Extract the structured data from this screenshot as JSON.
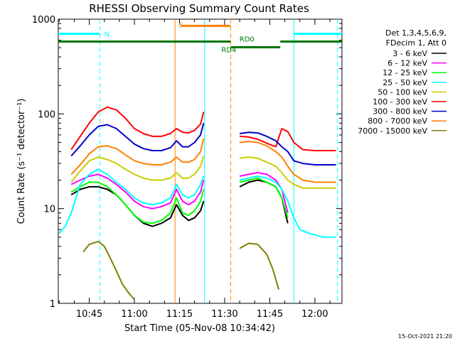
{
  "chart_data": {
    "type": "line",
    "title": "RHESSI Observing Summary Count Rates",
    "xlabel": "Start Time (05-Nov-08 10:34:42)",
    "ylabel": "Count Rate (s⁻¹ detector⁻¹)",
    "yscale": "log",
    "xlim": [
      "10:34:42",
      "12:09:00"
    ],
    "ylim": [
      1,
      1000
    ],
    "x_ticks": [
      "10:45",
      "11:00",
      "11:15",
      "11:30",
      "11:45",
      "12:00"
    ],
    "y_ticks": [
      "1",
      "10",
      "100",
      "1000"
    ],
    "legend_header": [
      "Det 1,3,4,5,6,9,",
      "FDecim 1, Att 0"
    ],
    "legend_position": "right",
    "footer_date": "15-Oct-2021 21:20",
    "series": [
      {
        "name": "3 - 6 keV",
        "color": "#000000",
        "points": [
          [
            "10:39",
            14
          ],
          [
            "10:42",
            16
          ],
          [
            "10:45",
            17
          ],
          [
            "10:48",
            17
          ],
          [
            "10:51",
            16
          ],
          [
            "10:54",
            14
          ],
          [
            "10:57",
            11
          ],
          [
            "11:00",
            8.5
          ],
          [
            "11:03",
            7
          ],
          [
            "11:06",
            6.5
          ],
          [
            "11:09",
            7
          ],
          [
            "11:12",
            8
          ],
          [
            "11:14",
            11
          ],
          [
            "11:16",
            8.5
          ],
          [
            "11:18",
            7.5
          ],
          [
            "11:20",
            8
          ],
          [
            "11:22",
            9.5
          ],
          [
            "11:23",
            12
          ],
          [
            "11:35",
            17
          ],
          [
            "11:38",
            19
          ],
          [
            "11:41",
            20
          ],
          [
            "11:44",
            19
          ],
          [
            "11:47",
            17
          ],
          [
            "11:49",
            13
          ],
          [
            "11:51",
            7
          ]
        ]
      },
      {
        "name": "6 - 12 keV",
        "color": "#ff00ff",
        "points": [
          [
            "10:39",
            18
          ],
          [
            "10:42",
            20
          ],
          [
            "10:45",
            22
          ],
          [
            "10:48",
            23
          ],
          [
            "10:51",
            21
          ],
          [
            "10:54",
            18
          ],
          [
            "10:57",
            15
          ],
          [
            "11:00",
            12
          ],
          [
            "11:03",
            10.5
          ],
          [
            "11:06",
            10
          ],
          [
            "11:09",
            10.5
          ],
          [
            "11:12",
            11.5
          ],
          [
            "11:14",
            16
          ],
          [
            "11:16",
            12
          ],
          [
            "11:18",
            11
          ],
          [
            "11:20",
            12
          ],
          [
            "11:22",
            15
          ],
          [
            "11:23",
            20
          ],
          [
            "11:35",
            22
          ],
          [
            "11:38",
            23
          ],
          [
            "11:41",
            24
          ],
          [
            "11:44",
            23
          ],
          [
            "11:47",
            20
          ],
          [
            "11:49",
            16
          ],
          [
            "11:51",
            9
          ]
        ]
      },
      {
        "name": "12 - 25 keV",
        "color": "#00ff00",
        "points": [
          [
            "10:39",
            15
          ],
          [
            "10:42",
            17
          ],
          [
            "10:45",
            19
          ],
          [
            "10:48",
            19
          ],
          [
            "10:51",
            17
          ],
          [
            "10:54",
            14
          ],
          [
            "10:57",
            11
          ],
          [
            "11:00",
            8.5
          ],
          [
            "11:03",
            7.2
          ],
          [
            "11:06",
            7
          ],
          [
            "11:09",
            7.5
          ],
          [
            "11:12",
            9
          ],
          [
            "11:14",
            13
          ],
          [
            "11:16",
            9
          ],
          [
            "11:18",
            8.5
          ],
          [
            "11:20",
            9.5
          ],
          [
            "11:22",
            12
          ],
          [
            "11:23",
            16
          ],
          [
            "11:35",
            19
          ],
          [
            "11:38",
            20
          ],
          [
            "11:41",
            21
          ],
          [
            "11:44",
            19
          ],
          [
            "11:47",
            17
          ],
          [
            "11:49",
            13
          ],
          [
            "11:51",
            8
          ]
        ]
      },
      {
        "name": "25 - 50 keV",
        "color": "#00ffff",
        "points": [
          [
            "10:35",
            5.5
          ],
          [
            "10:37",
            6.5
          ],
          [
            "10:39",
            9
          ],
          [
            "10:42",
            18
          ],
          [
            "10:45",
            23
          ],
          [
            "10:48",
            26
          ],
          [
            "10:51",
            23
          ],
          [
            "10:54",
            19
          ],
          [
            "10:57",
            16
          ],
          [
            "11:00",
            13
          ],
          [
            "11:03",
            11.5
          ],
          [
            "11:06",
            11
          ],
          [
            "11:09",
            11.5
          ],
          [
            "11:12",
            13
          ],
          [
            "11:14",
            18
          ],
          [
            "11:16",
            14
          ],
          [
            "11:18",
            13
          ],
          [
            "11:20",
            14
          ],
          [
            "11:22",
            18
          ],
          [
            "11:23",
            22
          ],
          [
            "11:35",
            20
          ],
          [
            "11:38",
            21
          ],
          [
            "11:41",
            22
          ],
          [
            "11:44",
            21
          ],
          [
            "11:47",
            19
          ],
          [
            "11:49",
            16
          ],
          [
            "11:51",
            12
          ],
          [
            "11:53",
            8
          ],
          [
            "11:55",
            6
          ],
          [
            "11:58",
            5.5
          ],
          [
            "12:03",
            5
          ],
          [
            "12:07",
            5
          ]
        ]
      },
      {
        "name": "50 - 100 keV",
        "color": "#cccc00",
        "points": [
          [
            "10:39",
            19
          ],
          [
            "10:42",
            25
          ],
          [
            "10:45",
            32
          ],
          [
            "10:48",
            35
          ],
          [
            "10:51",
            33
          ],
          [
            "10:54",
            30
          ],
          [
            "10:57",
            26
          ],
          [
            "11:00",
            23
          ],
          [
            "11:03",
            21
          ],
          [
            "11:06",
            20
          ],
          [
            "11:09",
            20
          ],
          [
            "11:12",
            21
          ],
          [
            "11:14",
            24
          ],
          [
            "11:16",
            21
          ],
          [
            "11:18",
            21
          ],
          [
            "11:20",
            23
          ],
          [
            "11:22",
            28
          ],
          [
            "11:23",
            36
          ],
          [
            "11:35",
            34
          ],
          [
            "11:38",
            35
          ],
          [
            "11:41",
            34
          ],
          [
            "11:44",
            31
          ],
          [
            "11:47",
            28
          ],
          [
            "11:49",
            24
          ],
          [
            "11:51",
            20
          ],
          [
            "11:53",
            18
          ],
          [
            "11:56",
            16.5
          ],
          [
            "12:00",
            16.5
          ],
          [
            "12:03",
            16.5
          ],
          [
            "12:07",
            16.5
          ]
        ]
      },
      {
        "name": "100 - 300 keV",
        "color": "#ff0000",
        "points": [
          [
            "10:39",
            42
          ],
          [
            "10:42",
            58
          ],
          [
            "10:45",
            80
          ],
          [
            "10:48",
            105
          ],
          [
            "10:51",
            118
          ],
          [
            "10:54",
            110
          ],
          [
            "10:57",
            90
          ],
          [
            "11:00",
            70
          ],
          [
            "11:03",
            62
          ],
          [
            "11:06",
            58
          ],
          [
            "11:09",
            58
          ],
          [
            "11:12",
            62
          ],
          [
            "11:14",
            70
          ],
          [
            "11:16",
            64
          ],
          [
            "11:18",
            63
          ],
          [
            "11:20",
            67
          ],
          [
            "11:22",
            78
          ],
          [
            "11:23",
            105
          ],
          [
            "11:35",
            58
          ],
          [
            "11:38",
            57
          ],
          [
            "11:41",
            54
          ],
          [
            "11:44",
            49
          ],
          [
            "11:47",
            45
          ],
          [
            "11:49",
            70
          ],
          [
            "11:51",
            65
          ],
          [
            "11:53",
            50
          ],
          [
            "11:56",
            42
          ],
          [
            "12:00",
            41
          ],
          [
            "12:03",
            41
          ],
          [
            "12:07",
            41
          ]
        ]
      },
      {
        "name": "300 - 800 keV",
        "color": "#0000cc",
        "points": [
          [
            "10:39",
            36
          ],
          [
            "10:42",
            46
          ],
          [
            "10:45",
            60
          ],
          [
            "10:48",
            74
          ],
          [
            "10:51",
            77
          ],
          [
            "10:54",
            70
          ],
          [
            "10:57",
            58
          ],
          [
            "11:00",
            48
          ],
          [
            "11:03",
            43
          ],
          [
            "11:06",
            41
          ],
          [
            "11:09",
            41
          ],
          [
            "11:12",
            44
          ],
          [
            "11:14",
            52
          ],
          [
            "11:16",
            45
          ],
          [
            "11:18",
            45
          ],
          [
            "11:20",
            50
          ],
          [
            "11:22",
            60
          ],
          [
            "11:23",
            80
          ],
          [
            "11:35",
            62
          ],
          [
            "11:38",
            64
          ],
          [
            "11:41",
            63
          ],
          [
            "11:44",
            58
          ],
          [
            "11:47",
            52
          ],
          [
            "11:49",
            45
          ],
          [
            "11:51",
            40
          ],
          [
            "11:53",
            32
          ],
          [
            "11:56",
            30
          ],
          [
            "12:00",
            29
          ],
          [
            "12:03",
            29
          ],
          [
            "12:07",
            29
          ]
        ]
      },
      {
        "name": "800 - 7000 keV",
        "color": "#ff8000",
        "points": [
          [
            "10:39",
            23
          ],
          [
            "10:42",
            29
          ],
          [
            "10:45",
            38
          ],
          [
            "10:48",
            45
          ],
          [
            "10:51",
            46
          ],
          [
            "10:54",
            43
          ],
          [
            "10:57",
            37
          ],
          [
            "11:00",
            32
          ],
          [
            "11:03",
            30
          ],
          [
            "11:06",
            29
          ],
          [
            "11:09",
            29
          ],
          [
            "11:12",
            31
          ],
          [
            "11:14",
            35
          ],
          [
            "11:16",
            31
          ],
          [
            "11:18",
            31
          ],
          [
            "11:20",
            33
          ],
          [
            "11:22",
            40
          ],
          [
            "11:23",
            55
          ],
          [
            "11:35",
            50
          ],
          [
            "11:38",
            51
          ],
          [
            "11:41",
            50
          ],
          [
            "11:44",
            46
          ],
          [
            "11:47",
            40
          ],
          [
            "11:49",
            35
          ],
          [
            "11:51",
            28
          ],
          [
            "11:53",
            23
          ],
          [
            "11:56",
            20
          ],
          [
            "12:00",
            19
          ],
          [
            "12:03",
            19
          ],
          [
            "12:07",
            19
          ]
        ]
      },
      {
        "name": "7000 - 15000 keV",
        "color": "#808000",
        "points": [
          [
            "10:43",
            3.5
          ],
          [
            "10:45",
            4.2
          ],
          [
            "10:48",
            4.5
          ],
          [
            "10:50",
            4
          ],
          [
            "10:52",
            3
          ],
          [
            "10:54",
            2.2
          ],
          [
            "10:56",
            1.6
          ],
          [
            "10:58",
            1.3
          ],
          [
            "11:00",
            1.1
          ],
          [
            "11:35",
            3.8
          ],
          [
            "11:38",
            4.3
          ],
          [
            "11:41",
            4.2
          ],
          [
            "11:44",
            3.3
          ],
          [
            "11:46",
            2.3
          ],
          [
            "11:48",
            1.4
          ]
        ]
      }
    ],
    "annotations": [
      {
        "text": "N",
        "color": "#00ffff",
        "time": "10:48:30",
        "level": 700
      },
      {
        "text": "S",
        "color": "#ff8000",
        "time": "11:13:20",
        "level": 880
      },
      {
        "text": "RD4",
        "color": "#007700",
        "time": "11:27:30",
        "level": 480
      },
      {
        "text": "RD0",
        "color": "#007700",
        "time": "11:33:30",
        "level": 620
      }
    ],
    "state_bars": [
      {
        "color": "#00ffff",
        "from": "10:34:42",
        "to": "10:48:30",
        "level": 700
      },
      {
        "color": "#00ffff",
        "from": "11:53:00",
        "to": "12:09:00",
        "level": 700
      },
      {
        "color": "#ff8000",
        "from": "11:15:30",
        "to": "11:32:00",
        "level": 850
      },
      {
        "color": "#007700",
        "from": "10:34:42",
        "to": "11:32:00",
        "level": 580
      },
      {
        "color": "#007700",
        "from": "11:32:00",
        "to": "11:48:30",
        "level": 505
      },
      {
        "color": "#007700",
        "from": "11:48:30",
        "to": "12:09:00",
        "level": 580
      }
    ],
    "vlines": [
      {
        "time": "10:48:30",
        "color": "#00ffff",
        "dashed": true
      },
      {
        "time": "11:13:30",
        "color": "#ff8000",
        "dashed": false
      },
      {
        "time": "11:23:20",
        "color": "#00ffff",
        "dashed": false
      },
      {
        "time": "11:32:00",
        "color": "#ff8000",
        "dashed": true
      },
      {
        "time": "11:53:00",
        "color": "#00ffff",
        "dashed": false
      },
      {
        "time": "12:07:30",
        "color": "#00ffff",
        "dashed": true
      }
    ]
  }
}
